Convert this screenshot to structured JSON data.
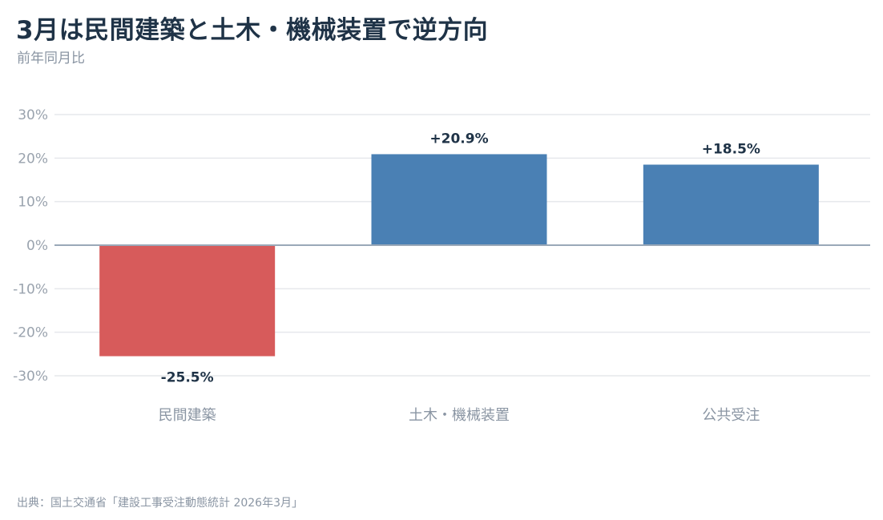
{
  "title": "3月は民間建築と土木・機械装置で逆方向",
  "subtitle": "前年同月比",
  "source": "出典：国土交通省「建設工事受注動態統計 2026年3月」",
  "colors": {
    "positive": "#4a80b4",
    "negative": "#d75b5b",
    "grid": "#e6e8ec",
    "zero_line": "#9aa8b8"
  },
  "chart_data": {
    "type": "bar",
    "categories": [
      "民間建築",
      "土木・機械装置",
      "公共受注"
    ],
    "values": [
      -25.5,
      20.9,
      18.5
    ],
    "data_labels": [
      "-25.5%",
      "+20.9%",
      "+18.5%"
    ],
    "ylim": [
      -30,
      30
    ],
    "yticks": [
      30,
      20,
      10,
      0,
      -10,
      -20,
      -30
    ],
    "ytick_labels": [
      "30%",
      "20%",
      "10%",
      "0%",
      "-10%",
      "-20%",
      "-30%"
    ],
    "xlabel": "",
    "ylabel": "",
    "grid": true,
    "legend": "none"
  }
}
